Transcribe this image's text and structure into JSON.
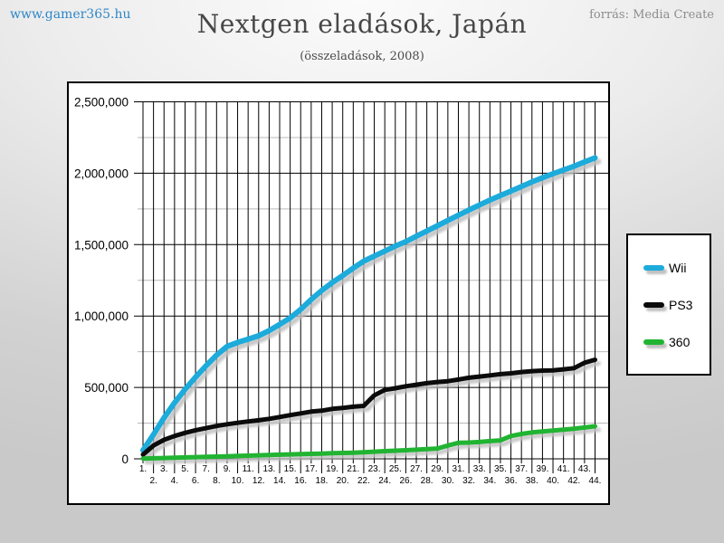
{
  "header": {
    "site_link": "www.gamer365.hu",
    "source": "forrás: Media Create",
    "title": "Nextgen eladások, Japán",
    "subtitle": "(összeladások, 2008)"
  },
  "chart_data": {
    "type": "line",
    "title": "Nextgen eladások, Japán",
    "subtitle": "(összeladások, 2008)",
    "x_meaning": "week of 2008",
    "x_tick_labels": [
      "1.",
      "2.",
      "3.",
      "4.",
      "5.",
      "6.",
      "7.",
      "8.",
      "9.",
      "10.",
      "11.",
      "12.",
      "13.",
      "14.",
      "15.",
      "16.",
      "17.",
      "18.",
      "19.",
      "20.",
      "21.",
      "22.",
      "23.",
      "24.",
      "25.",
      "26.",
      "27.",
      "28.",
      "29.",
      "30.",
      "31.",
      "32.",
      "33.",
      "34.",
      "35.",
      "36.",
      "37.",
      "38.",
      "39.",
      "40.",
      "41.",
      "42.",
      "43.",
      "44."
    ],
    "ylim": [
      0,
      2500000
    ],
    "y_major_ticks": [
      0,
      500000,
      1000000,
      1500000,
      2000000,
      2500000
    ],
    "y_tick_labels": [
      "0",
      "500,000",
      "1,000,000",
      "1,500,000",
      "2,000,000",
      "2,500,000"
    ],
    "y_minor_step": 250000,
    "grid": "both",
    "legend_position": "right-outside",
    "series": [
      {
        "name": "Wii",
        "color": "#1cabdb",
        "line_width": 6,
        "values": [
          60000,
          170000,
          287000,
          392000,
          487000,
          572000,
          652000,
          726000,
          787000,
          815000,
          838000,
          862000,
          898000,
          941000,
          987000,
          1046000,
          1116000,
          1179000,
          1234000,
          1283000,
          1335000,
          1384000,
          1420000,
          1455000,
          1490000,
          1521000,
          1558000,
          1595000,
          1632000,
          1669000,
          1706000,
          1742000,
          1777000,
          1812000,
          1844000,
          1875000,
          1907000,
          1939000,
          1968000,
          1996000,
          2023000,
          2049000,
          2079000,
          2108000
        ]
      },
      {
        "name": "PS3",
        "color": "#0b0b0b",
        "line_width": 5,
        "values": [
          30000,
          93000,
          133000,
          160000,
          182000,
          200000,
          215000,
          230000,
          242000,
          252000,
          262000,
          270000,
          280000,
          293000,
          306000,
          318000,
          331000,
          337000,
          350000,
          356000,
          365000,
          371000,
          445000,
          483000,
          494000,
          508000,
          519000,
          530000,
          538000,
          544000,
          555000,
          568000,
          576000,
          584000,
          593000,
          599000,
          608000,
          614000,
          618000,
          620000,
          627000,
          635000,
          673000,
          694000
        ]
      },
      {
        "name": "360",
        "color": "#21b432",
        "line_width": 5,
        "values": [
          2000,
          4000,
          6000,
          8000,
          10000,
          12000,
          14000,
          16000,
          18000,
          20000,
          22000,
          25000,
          27000,
          29000,
          31000,
          33000,
          35000,
          37000,
          39000,
          41000,
          43000,
          46000,
          50000,
          54000,
          57000,
          60000,
          64000,
          68000,
          72000,
          93000,
          112000,
          114000,
          118000,
          124000,
          129000,
          160000,
          174000,
          185000,
          192000,
          198000,
          204000,
          211000,
          219000,
          228000
        ]
      }
    ]
  },
  "colors": {
    "grid_major": "#000000",
    "grid_minor": "#b9b9b9",
    "shadow": "#c0c0c0",
    "plot_background": "#ffffff"
  }
}
